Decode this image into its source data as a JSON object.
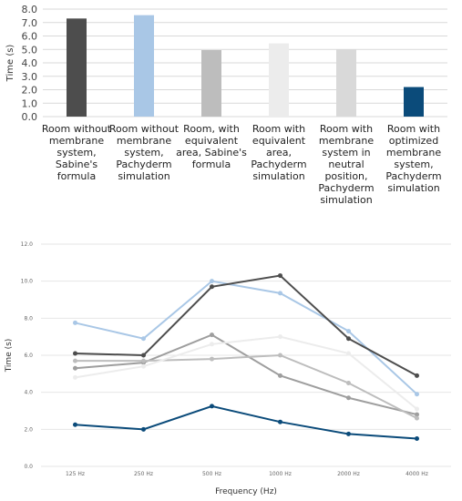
{
  "chart_data": [
    {
      "type": "bar",
      "ylabel": "Time (s)",
      "ylim": [
        0,
        8
      ],
      "yticks": [
        "0.0",
        "1.0",
        "2.0",
        "3.0",
        "4.0",
        "5.0",
        "6.0",
        "7.0",
        "8.0"
      ],
      "grid": true,
      "categories": [
        [
          "Room without",
          "membrane",
          "system,",
          "Sabine's",
          "formula"
        ],
        [
          "Room without",
          "membrane",
          "system,",
          "Pachyderm",
          "simulation"
        ],
        [
          "Room, with",
          "equivalent",
          "area, Sabine's",
          "formula"
        ],
        [
          "Room with",
          "equivalent",
          "area,",
          "Pachyderm",
          "simulation"
        ],
        [
          "Room with",
          "membrane",
          "system in",
          "neutral",
          "position,",
          "Pachyderm",
          "simulation"
        ],
        [
          "Room with",
          "optimized",
          "membrane",
          "system,",
          "Pachyderm",
          "simulation"
        ]
      ],
      "values": [
        7.3,
        7.55,
        4.95,
        5.45,
        5.0,
        2.2
      ],
      "colors": [
        "#4d4d4d",
        "#a9c7e6",
        "#bdbdbd",
        "#ececec",
        "#d9d9d9",
        "#0b4b7a"
      ]
    },
    {
      "type": "line",
      "xlabel": "Frequency (Hz)",
      "ylabel": "Time (s)",
      "ylim": [
        0,
        12
      ],
      "yticks": [
        "0.0",
        "2.0",
        "4.0",
        "6.0",
        "8.0",
        "10.0",
        "12.0"
      ],
      "grid": true,
      "categories": [
        "125 Hz",
        "250 Hz",
        "500 Hz",
        "1000 Hz",
        "2000 Hz",
        "4000 Hz"
      ],
      "series": [
        {
          "color": "#a9c7e6",
          "values": [
            7.75,
            6.9,
            10.0,
            9.35,
            7.3,
            3.9
          ]
        },
        {
          "color": "#4d4d4d",
          "values": [
            6.1,
            6.0,
            9.7,
            10.3,
            6.9,
            4.9
          ]
        },
        {
          "color": "#9e9e9e",
          "values": [
            5.3,
            5.6,
            7.1,
            4.9,
            3.7,
            2.8
          ]
        },
        {
          "color": "#bdbdbd",
          "values": [
            5.7,
            5.7,
            5.8,
            6.0,
            4.5,
            2.6
          ]
        },
        {
          "color": "#ececec",
          "values": [
            4.8,
            5.4,
            6.6,
            7.0,
            6.1,
            3.1
          ]
        },
        {
          "color": "#0b4b7a",
          "values": [
            2.25,
            2.0,
            3.25,
            2.4,
            1.75,
            1.5
          ]
        }
      ]
    }
  ]
}
